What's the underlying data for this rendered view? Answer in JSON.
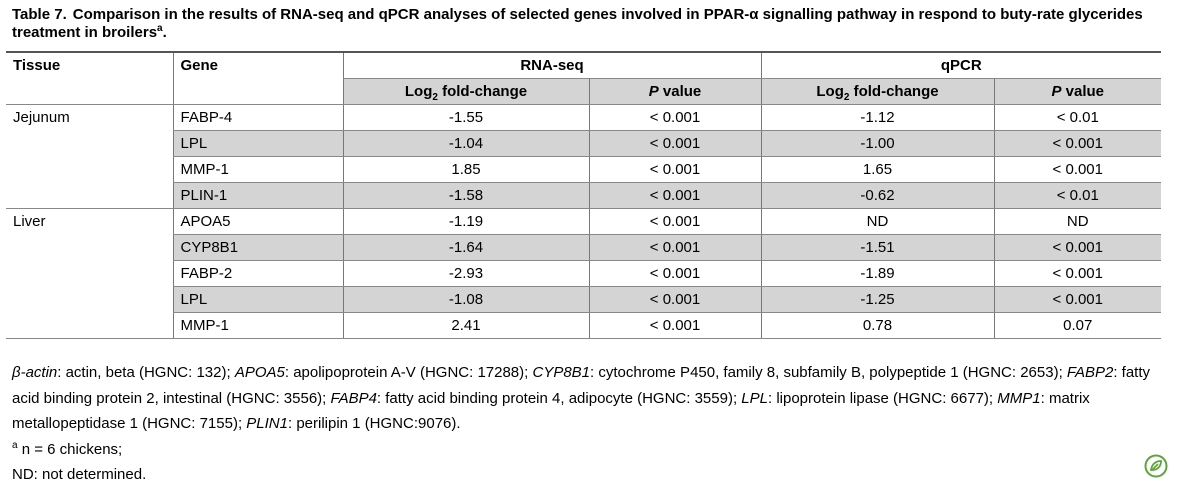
{
  "caption": {
    "label": "Table 7.",
    "text": "Comparison in the results of RNA-seq and qPCR analyses of selected genes involved in PPAR-α signalling pathway in respond to buty-rate glycerides treatment in broilers",
    "sup": "a",
    "end": "."
  },
  "headers": {
    "tissue": "Tissue",
    "gene": "Gene",
    "rnaseq": "RNA-seq",
    "qpcr": "qPCR",
    "log2_prefix": "Log",
    "log2_sub": "2",
    "log2_suffix": " fold-change",
    "p_italic": "P",
    "p_rest": " value"
  },
  "rows": [
    {
      "tissue": "Jejunum",
      "gene": "FABP-4",
      "rna_fc": "-1.55",
      "rna_p": "< 0.001",
      "qpcr_fc": "-1.12",
      "qpcr_p": "< 0.01"
    },
    {
      "tissue": "",
      "gene": "LPL",
      "rna_fc": "-1.04",
      "rna_p": "< 0.001",
      "qpcr_fc": "-1.00",
      "qpcr_p": "< 0.001"
    },
    {
      "tissue": "",
      "gene": "MMP-1",
      "rna_fc": "1.85",
      "rna_p": "< 0.001",
      "qpcr_fc": "1.65",
      "qpcr_p": "< 0.001"
    },
    {
      "tissue": "",
      "gene": "PLIN-1",
      "rna_fc": "-1.58",
      "rna_p": "< 0.001",
      "qpcr_fc": "-0.62",
      "qpcr_p": "< 0.01"
    },
    {
      "tissue": "Liver",
      "gene": "APOA5",
      "rna_fc": "-1.19",
      "rna_p": "< 0.001",
      "qpcr_fc": "ND",
      "qpcr_p": "ND"
    },
    {
      "tissue": "",
      "gene": "CYP8B1",
      "rna_fc": "-1.64",
      "rna_p": "< 0.001",
      "qpcr_fc": "-1.51",
      "qpcr_p": "< 0.001"
    },
    {
      "tissue": "",
      "gene": "FABP-2",
      "rna_fc": "-2.93",
      "rna_p": "< 0.001",
      "qpcr_fc": "-1.89",
      "qpcr_p": "< 0.001"
    },
    {
      "tissue": "",
      "gene": "LPL",
      "rna_fc": "-1.08",
      "rna_p": "< 0.001",
      "qpcr_fc": "-1.25",
      "qpcr_p": "< 0.001"
    },
    {
      "tissue": "",
      "gene": "MMP-1",
      "rna_fc": "2.41",
      "rna_p": "< 0.001",
      "qpcr_fc": "0.78",
      "qpcr_p": "0.07"
    }
  ],
  "notes": {
    "abbrev": [
      {
        "gene": "β-actin",
        "desc": ": actin, beta (HGNC: 132); "
      },
      {
        "gene": "APOA5",
        "desc": ": apolipoprotein A-V (HGNC: 17288); "
      },
      {
        "gene": "CYP8B1",
        "desc": ": cytochrome P450, family 8, subfamily B, polypeptide 1 (HGNC: 2653); "
      },
      {
        "gene": "FABP2",
        "desc": ": fatty acid binding protein 2, intestinal (HGNC: 3556); "
      },
      {
        "gene": "FABP4",
        "desc": ": fatty acid binding protein 4, adipocyte (HGNC: 3559); "
      },
      {
        "gene": "LPL",
        "desc": ": lipoprotein lipase (HGNC: 6677); "
      },
      {
        "gene": "MMP1",
        "desc": ": matrix metallopeptidase 1 (HGNC: 7155); "
      },
      {
        "gene": "PLIN1",
        "desc": ": perilipin 1 (HGNC:9076)."
      }
    ],
    "footnote_mark": "a",
    "footnote_text": " n = 6 chickens;",
    "nd_text": "ND: not determined."
  },
  "colors": {
    "header_shade": "#d4d4d4",
    "logo_green": "#5aa63a"
  },
  "icons": {
    "logo": "plos-leaf-logo"
  }
}
